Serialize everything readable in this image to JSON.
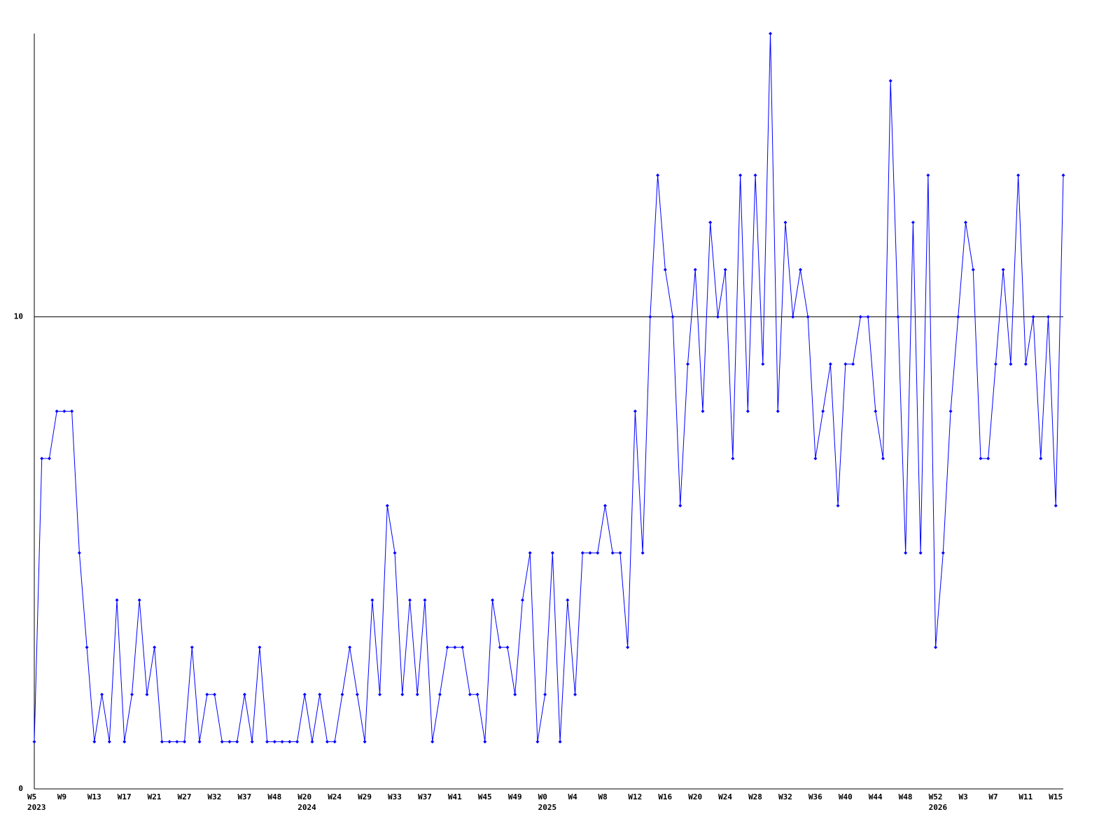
{
  "chart_data": {
    "type": "line",
    "color": "#0000ff",
    "categories": [
      "W5",
      null,
      null,
      null,
      "W9",
      null,
      null,
      null,
      "W13",
      null,
      null,
      null,
      "W17",
      null,
      null,
      null,
      "W21",
      null,
      null,
      null,
      "W27",
      null,
      null,
      null,
      "W32",
      null,
      null,
      null,
      "W37",
      null,
      null,
      null,
      "W48",
      null,
      null,
      null,
      "W20",
      null,
      null,
      null,
      "W24",
      null,
      null,
      null,
      "W29",
      null,
      null,
      null,
      "W33",
      null,
      null,
      null,
      "W37",
      null,
      null,
      null,
      "W41",
      null,
      null,
      null,
      "W45",
      null,
      null,
      null,
      "W49",
      null,
      null,
      null,
      "W0",
      null,
      null,
      null,
      "W4",
      null,
      null,
      null,
      "W8",
      null,
      null,
      null,
      "W12",
      null,
      null,
      null,
      "W16",
      null,
      null,
      null,
      "W20",
      null,
      null,
      null,
      "W24",
      null,
      null,
      null,
      "W28",
      null,
      null,
      null,
      "W32",
      null,
      null,
      null,
      "W36",
      null,
      null,
      null,
      "W40",
      null,
      null,
      null,
      "W44",
      null,
      null,
      null,
      "W48",
      null,
      null,
      null,
      "W52",
      null,
      null,
      null,
      "W3",
      null,
      null,
      null,
      "W7",
      null,
      null,
      null,
      "W11",
      null,
      null,
      null,
      "W15",
      null
    ],
    "year_categories": [
      "2023",
      null,
      null,
      null,
      null,
      null,
      null,
      null,
      null,
      null,
      null,
      null,
      null,
      null,
      null,
      null,
      null,
      null,
      null,
      null,
      null,
      null,
      null,
      null,
      null,
      null,
      null,
      null,
      null,
      null,
      null,
      null,
      null,
      null,
      null,
      null,
      "2024",
      null,
      null,
      null,
      null,
      null,
      null,
      null,
      null,
      null,
      null,
      null,
      null,
      null,
      null,
      null,
      null,
      null,
      null,
      null,
      null,
      null,
      null,
      null,
      null,
      null,
      null,
      null,
      null,
      null,
      null,
      null,
      "2025",
      null,
      null,
      null,
      null,
      null,
      null,
      null,
      null,
      null,
      null,
      null,
      null,
      null,
      null,
      null,
      null,
      null,
      null,
      null,
      null,
      null,
      null,
      null,
      null,
      null,
      null,
      null,
      null,
      null,
      null,
      null,
      null,
      null,
      null,
      null,
      null,
      null,
      null,
      null,
      null,
      null,
      null,
      null,
      null,
      null,
      null,
      null,
      null,
      null,
      null,
      null,
      "2026",
      null,
      null,
      null,
      null,
      null,
      null,
      null,
      null,
      null,
      null,
      null,
      null,
      null,
      null,
      null,
      null,
      null
    ],
    "values": [
      1,
      7,
      7,
      8,
      8,
      8,
      5,
      3,
      1,
      2,
      1,
      4,
      1,
      2,
      4,
      2,
      3,
      1,
      1,
      1,
      1,
      3,
      1,
      2,
      2,
      1,
      1,
      1,
      2,
      1,
      3,
      1,
      1,
      1,
      1,
      1,
      2,
      1,
      2,
      1,
      1,
      2,
      3,
      2,
      1,
      4,
      2,
      6,
      5,
      2,
      4,
      2,
      4,
      1,
      2,
      3,
      3,
      3,
      2,
      2,
      1,
      4,
      3,
      3,
      2,
      4,
      5,
      1,
      2,
      5,
      1,
      4,
      2,
      5,
      5,
      5,
      6,
      5,
      5,
      3,
      8,
      5,
      10,
      13,
      11,
      10,
      6,
      9,
      11,
      8,
      12,
      10,
      11,
      7,
      13,
      8,
      13,
      9,
      16,
      8,
      12,
      10,
      11,
      10,
      7,
      8,
      9,
      6,
      9,
      9,
      10,
      10,
      8,
      7,
      15,
      10,
      5,
      12,
      5,
      13,
      3,
      5,
      8,
      10,
      12,
      11,
      7,
      7,
      9,
      11,
      9,
      13,
      9,
      10,
      7,
      10,
      6,
      13
    ],
    "ylim": [
      0,
      16
    ],
    "yticks": [
      0,
      10
    ],
    "grid": true
  }
}
